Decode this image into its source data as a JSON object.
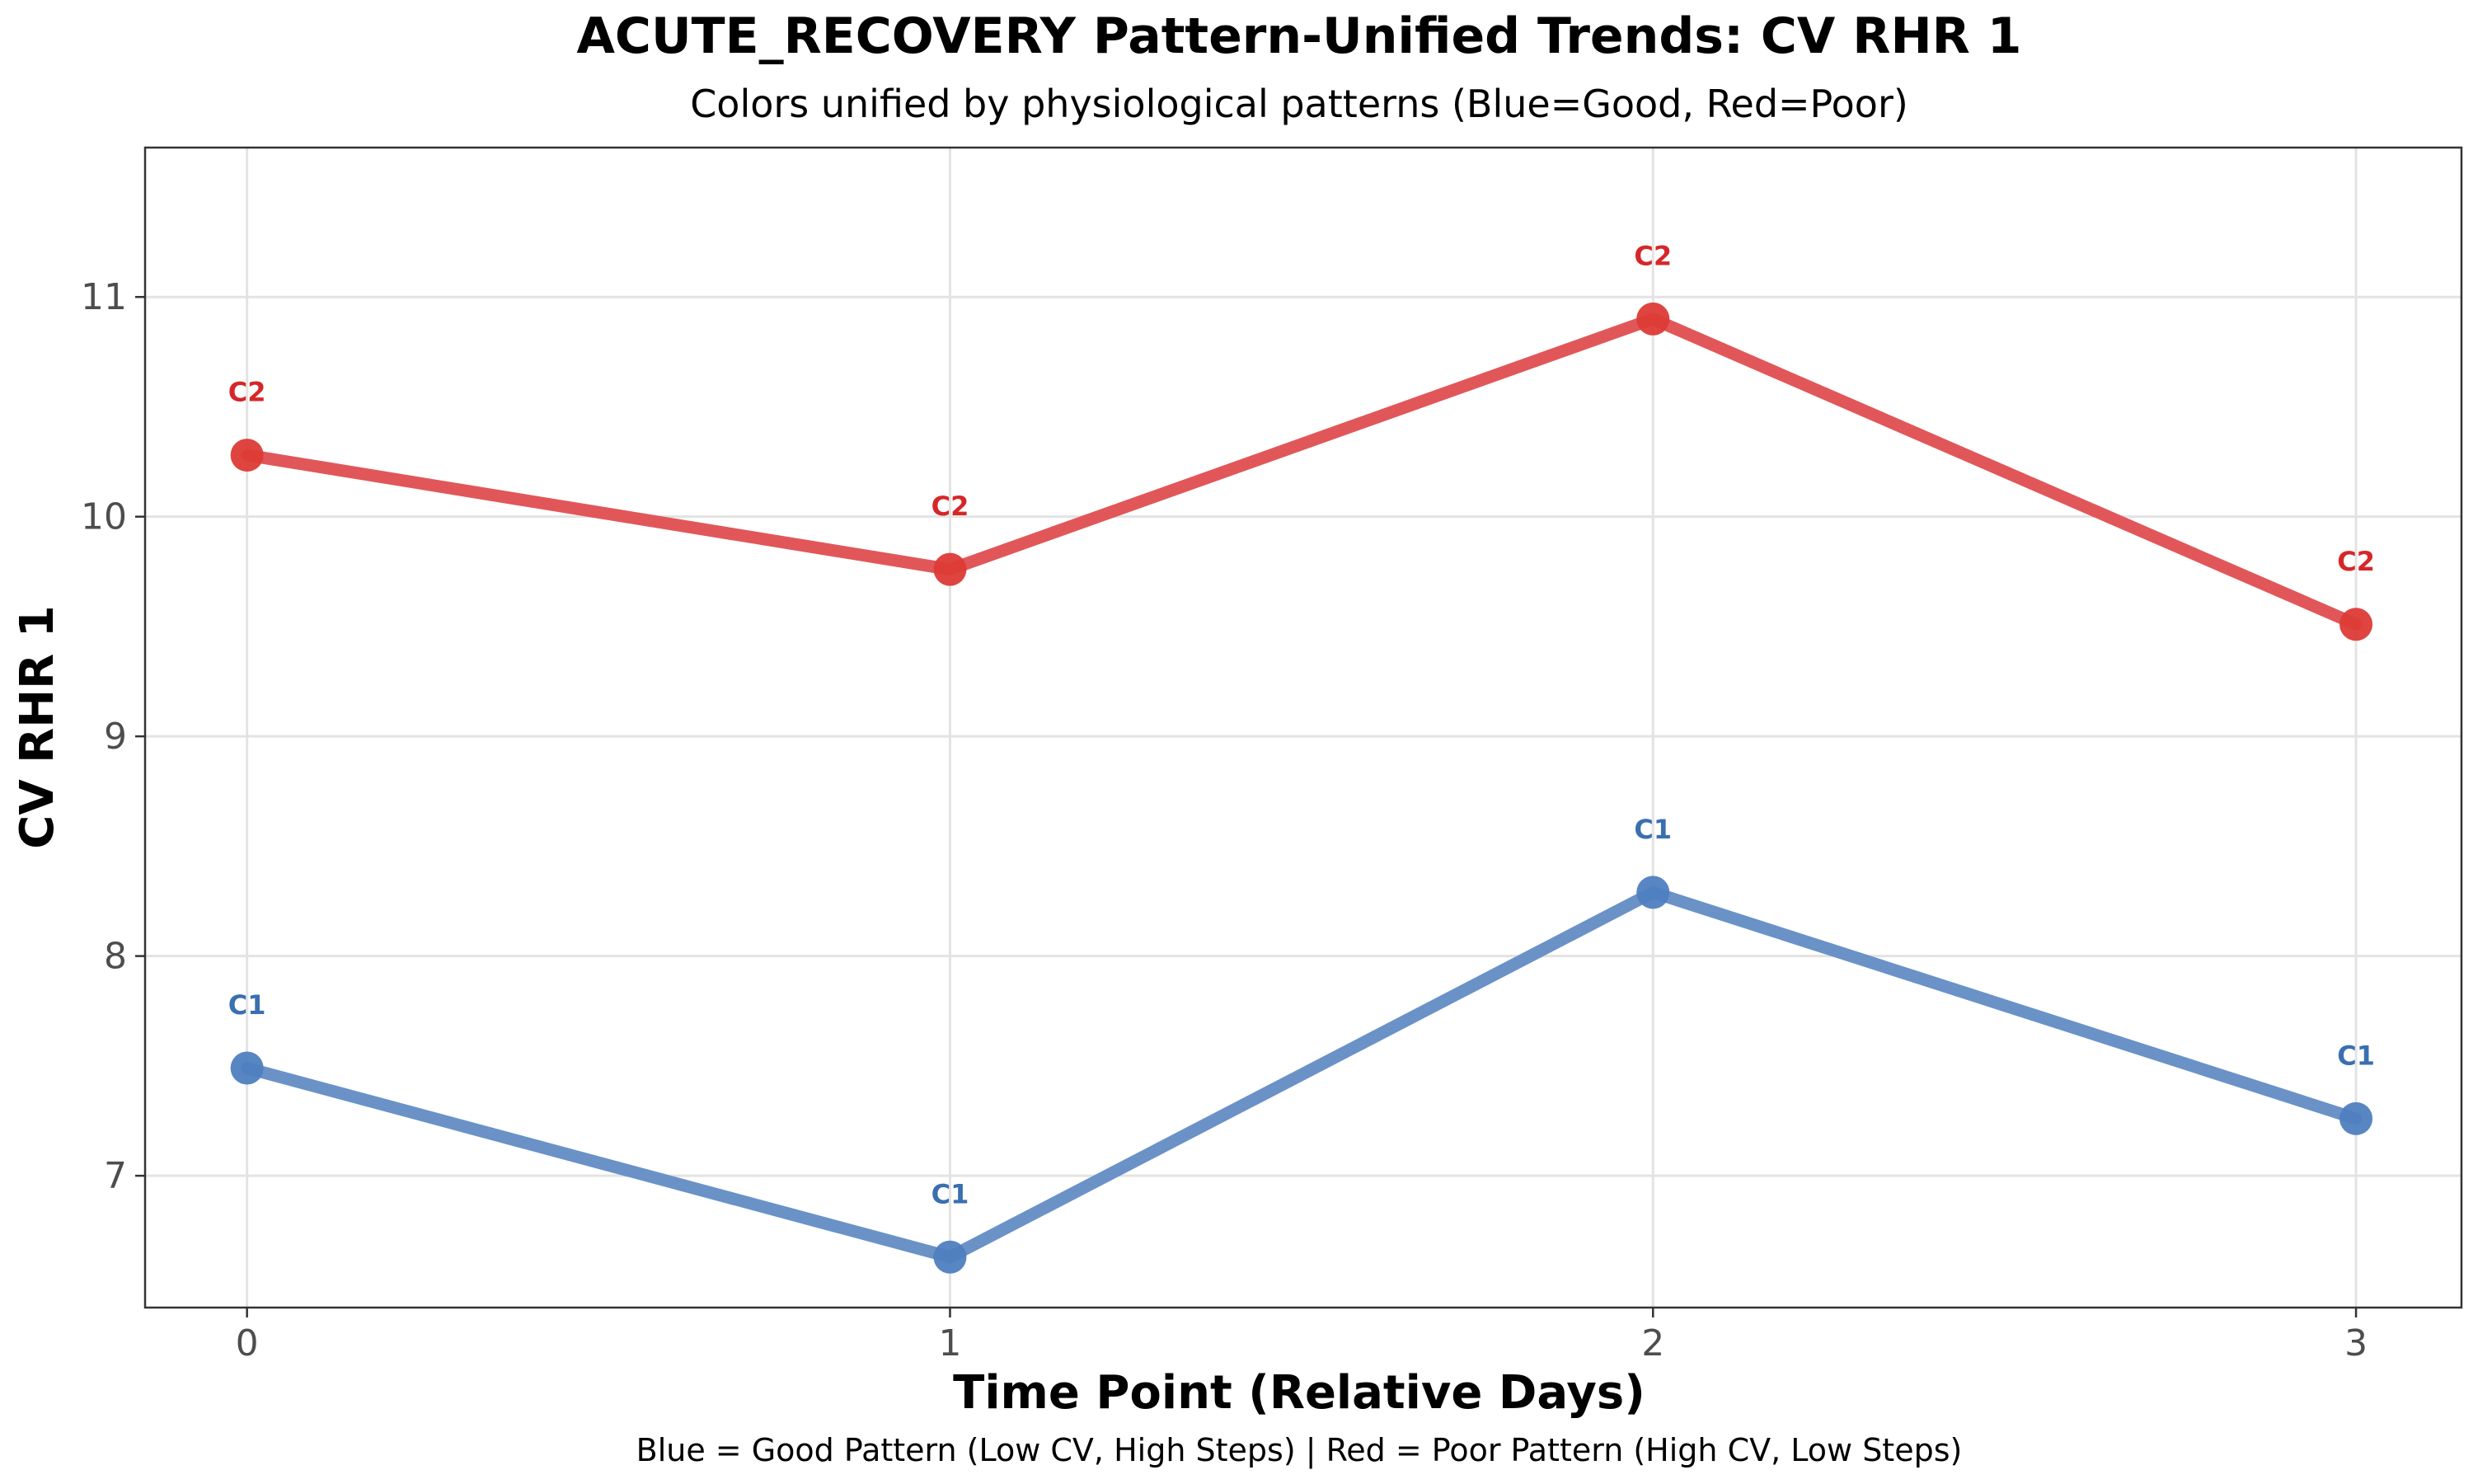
{
  "chart_data": {
    "type": "line",
    "title": "ACUTE_RECOVERY Pattern-Unified Trends: CV RHR 1",
    "subtitle": "Colors unified by physiological patterns (Blue=Good, Red=Poor)",
    "xlabel": "Time Point (Relative Days)",
    "ylabel": "CV RHR 1",
    "caption": "Blue = Good Pattern (Low CV, High Steps) | Red = Poor Pattern (High CV, Low Steps)",
    "x": [
      0,
      1,
      2,
      3
    ],
    "x_ticks": [
      "0",
      "1",
      "2",
      "3"
    ],
    "y_ticks": [
      "7",
      "8",
      "9",
      "10",
      "11"
    ],
    "xlim": [
      -0.145,
      3.15
    ],
    "ylim": [
      6.4,
      11.68
    ],
    "grid": true,
    "series": [
      {
        "name": "C2",
        "color": "#e15759",
        "label_color": "#d62728",
        "values": [
          10.28,
          9.76,
          10.9,
          9.51
        ],
        "point_labels": [
          "C2",
          "C2",
          "C2",
          "C2"
        ]
      },
      {
        "name": "C1",
        "color": "#6a92c7",
        "label_color": "#3a6fb0",
        "values": [
          7.49,
          6.63,
          8.29,
          7.26
        ],
        "point_labels": [
          "C1",
          "C1",
          "C1",
          "C1"
        ]
      }
    ]
  }
}
